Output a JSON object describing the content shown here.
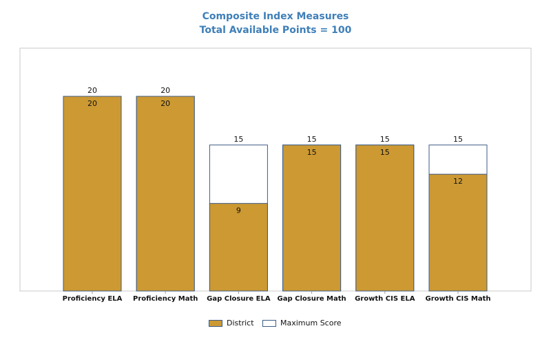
{
  "chart_data": {
    "type": "bar",
    "title": "Composite Index Measures",
    "subtitle": "Total Available Points = 100",
    "categories": [
      "Proficiency ELA",
      "Proficiency Math",
      "Gap Closure ELA",
      "Gap Closure Math",
      "Growth CIS ELA",
      "Growth CIS Math"
    ],
    "series": [
      {
        "name": "District",
        "values": [
          20,
          20,
          9,
          15,
          15,
          12
        ],
        "color": "#cc9933"
      },
      {
        "name": "Maximum Score",
        "values": [
          20,
          20,
          15,
          15,
          15,
          15
        ],
        "color": "#ffffff"
      }
    ],
    "bar_outline_color": "#3b5a85",
    "ylim": [
      0,
      25
    ],
    "grid": false,
    "legend_position": "bottom"
  }
}
